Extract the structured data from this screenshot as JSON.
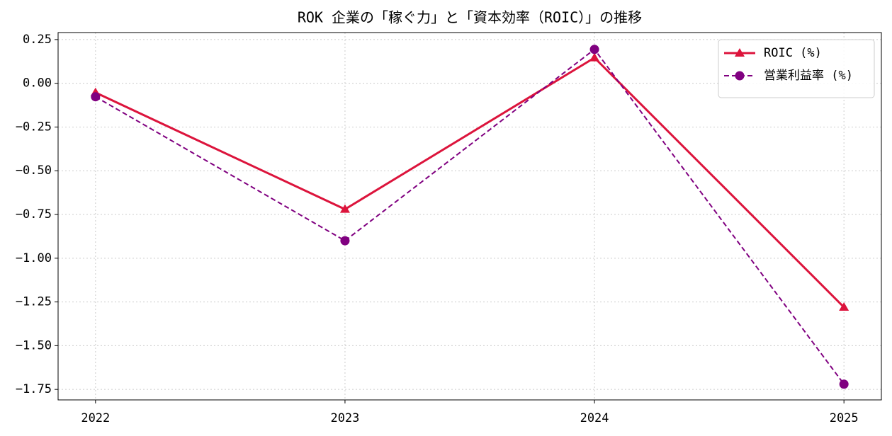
{
  "chart_data": {
    "type": "line",
    "title": "ROK 企業の「稼ぐ力」と「資本効率（ROIC）」の推移",
    "categories": [
      "2022",
      "2023",
      "2024",
      "2025"
    ],
    "series": [
      {
        "name": "ROIC (%)",
        "color": "#dc143c",
        "marker": "triangle",
        "dash": "solid",
        "values": [
          -0.053,
          -0.72,
          0.146,
          -1.28
        ]
      },
      {
        "name": "営業利益率 (%)",
        "color": "#800080",
        "marker": "circle",
        "dash": "dashed",
        "values": [
          -0.077,
          -0.9,
          0.194,
          -1.72
        ]
      }
    ],
    "ylim": [
      -1.81,
      0.29
    ],
    "yticks": [
      0.25,
      {
        "value": 0,
        "label": "0.00"
      },
      {
        "value": -0.25,
        "label": "−0.25"
      },
      {
        "value": -0.5,
        "label": "−0.50"
      },
      {
        "value": -0.75,
        "label": "−0.75"
      },
      {
        "value": -1,
        "label": "−1.00"
      },
      {
        "value": -1.25,
        "label": "−1.25"
      },
      {
        "value": -1.5,
        "label": "−1.50"
      },
      {
        "value": -1.75,
        "label": "−1.75"
      }
    ],
    "grid": true,
    "legend": "upper right"
  }
}
